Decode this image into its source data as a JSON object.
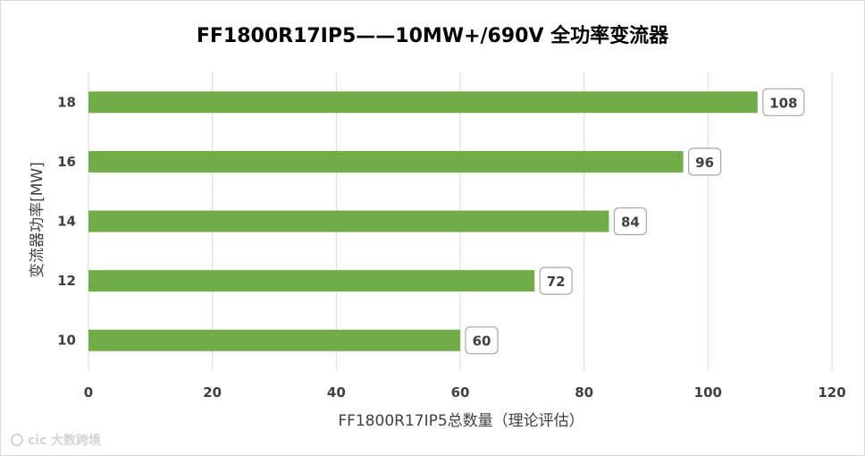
{
  "chart_data": {
    "type": "bar",
    "orientation": "horizontal",
    "title": "FF1800R17IP5——10MW+/690V 全功率变流器",
    "categories": [
      "10",
      "12",
      "14",
      "16",
      "18"
    ],
    "values": [
      60,
      72,
      84,
      96,
      108
    ],
    "data_labels": [
      "60",
      "72",
      "84",
      "96",
      "108"
    ],
    "xlabel": "FF1800R17IP5总数量（理论评估）",
    "ylabel": "变流器功率[MW]",
    "xlim": [
      0,
      120
    ],
    "xticks": [
      "0",
      "20",
      "40",
      "60",
      "80",
      "100",
      "120"
    ],
    "grid": true,
    "legend": "none",
    "colors": {
      "bar": "#70ad47",
      "grid": "#d9d9d9",
      "label_box_border": "#a6a6a6"
    }
  },
  "watermark": {
    "logo_text": "cic",
    "text": "大数跨境"
  }
}
